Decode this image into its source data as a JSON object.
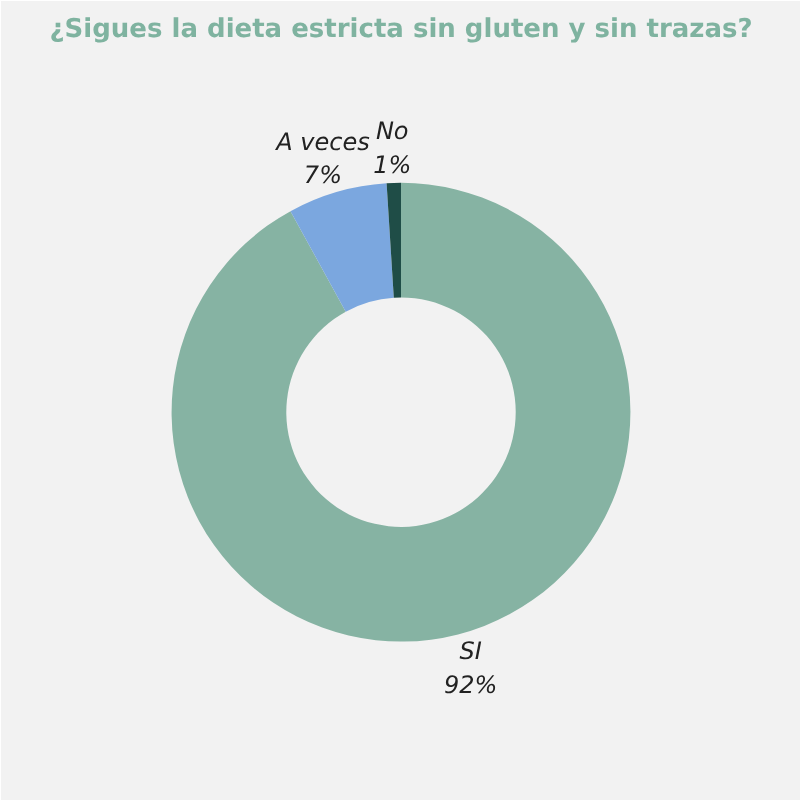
{
  "chart_data": {
    "type": "donut",
    "title": "¿Sigues la dieta estricta sin gluten y sin trazas?",
    "categories": [
      "SI",
      "A veces",
      "No"
    ],
    "values": [
      92,
      7,
      1
    ],
    "value_labels": [
      "92%",
      "7%",
      "1%"
    ],
    "colors": [
      "#86b3a3",
      "#7ba7df",
      "#1f4d47"
    ]
  }
}
